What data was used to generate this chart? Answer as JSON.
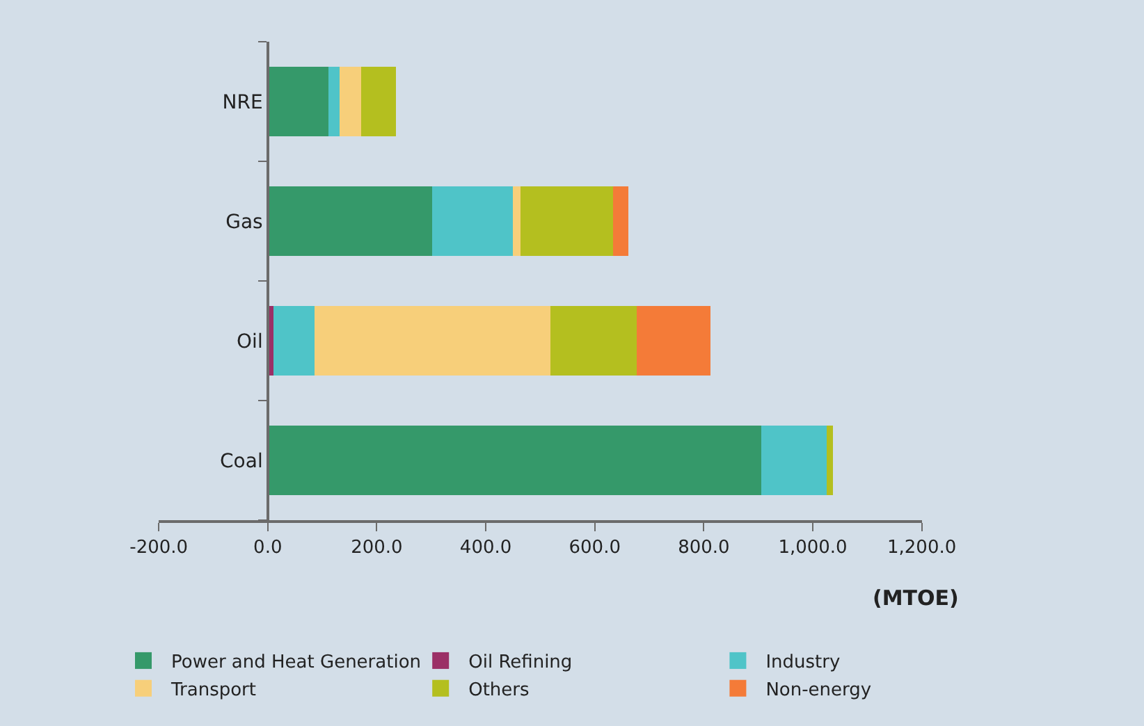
{
  "chart_data": {
    "type": "bar",
    "orientation": "horizontal",
    "stacked": true,
    "xlabel": "(MTOE)",
    "categories": [
      "NRE",
      "Gas",
      "Oil",
      "Coal"
    ],
    "series": [
      {
        "name": "Power and Heat Generation",
        "color": "#35996a",
        "values": [
          111,
          302,
          0,
          906
        ]
      },
      {
        "name": "Oil Refining",
        "color": "#9b2f66",
        "values": [
          0,
          0,
          10,
          0
        ]
      },
      {
        "name": "Industry",
        "color": "#4fc4c8",
        "values": [
          21,
          148,
          76,
          119
        ]
      },
      {
        "name": "Transport",
        "color": "#f7cf7a",
        "values": [
          39,
          14,
          432,
          0
        ]
      },
      {
        "name": "Others",
        "color": "#b4bf1f",
        "values": [
          64,
          169,
          159,
          12
        ]
      },
      {
        "name": "Non-energy",
        "color": "#f47b38",
        "values": [
          0,
          29,
          135,
          0
        ]
      }
    ],
    "xlim": [
      -200,
      1200
    ],
    "xticks": [
      {
        "value": -200,
        "label": "-200.0"
      },
      {
        "value": 0,
        "label": "0.0"
      },
      {
        "value": 200,
        "label": "200.0"
      },
      {
        "value": 400,
        "label": "400.0"
      },
      {
        "value": 600,
        "label": "600.0"
      },
      {
        "value": 800,
        "label": "800.0"
      },
      {
        "value": 1000,
        "label": "1,000.0"
      },
      {
        "value": 1200,
        "label": "1,200.0"
      }
    ],
    "grid": false,
    "legend": "bottom"
  }
}
